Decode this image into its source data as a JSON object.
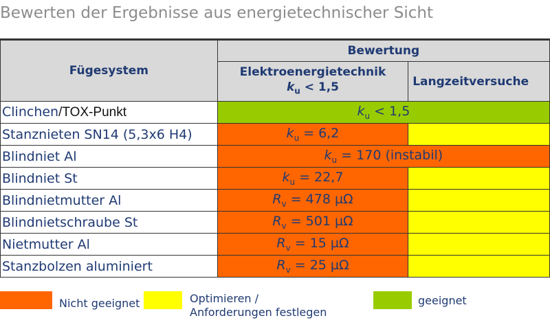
{
  "title": "Bewerten der Ergebnisse aus energietechnischer Sicht",
  "colors": {
    "nicht_geeignet": "#ff6600",
    "optimieren": "#ffff00",
    "geeignet": "#99cc00",
    "text": "#1f3a73"
  },
  "header": {
    "col1": "Fügesystem",
    "group": "Bewertung",
    "col2_line1": "Elektroenergietechnik",
    "col2_k": "k",
    "col2_sub": "u",
    "col2_rest": " < 1,5",
    "col3": "Langzeitversuche"
  },
  "rows": [
    {
      "name_a": "Clinchen",
      "name_b": "/TOX-Punkt",
      "sym": "k",
      "sub": "u",
      "rest": " < 1,5"
    },
    {
      "name": "Stanznieten SN14 (5,3x6 H4)",
      "sym": "k",
      "sub": "u",
      "rest": " = 6,2"
    },
    {
      "name": "Blindniet Al",
      "sym": "k",
      "sub": "u",
      "rest": " = 170 (instabil)"
    },
    {
      "name": "Blindniet St",
      "sym": "k",
      "sub": "u",
      "rest": " =  22,7"
    },
    {
      "name": "Blindnietmutter Al",
      "sym": "R",
      "sub": "v",
      "rest": " = 478 µΩ"
    },
    {
      "name": "Blindnietschraube St",
      "sym": "R",
      "sub": "v",
      "rest": " = 501 µΩ"
    },
    {
      "name": "Nietmutter Al",
      "sym": "R",
      "sub": "v",
      "rest": " = 15 µΩ"
    },
    {
      "name": "Stanzbolzen aluminiert",
      "sym": "R",
      "sub": "v",
      "rest": " = 25 µΩ"
    }
  ],
  "legend": {
    "nicht_geeignet": "Nicht geeignet",
    "optimieren_line1": "Optimieren /",
    "optimieren_line2": "Anforderungen festlegen",
    "geeignet": "geeignet"
  }
}
